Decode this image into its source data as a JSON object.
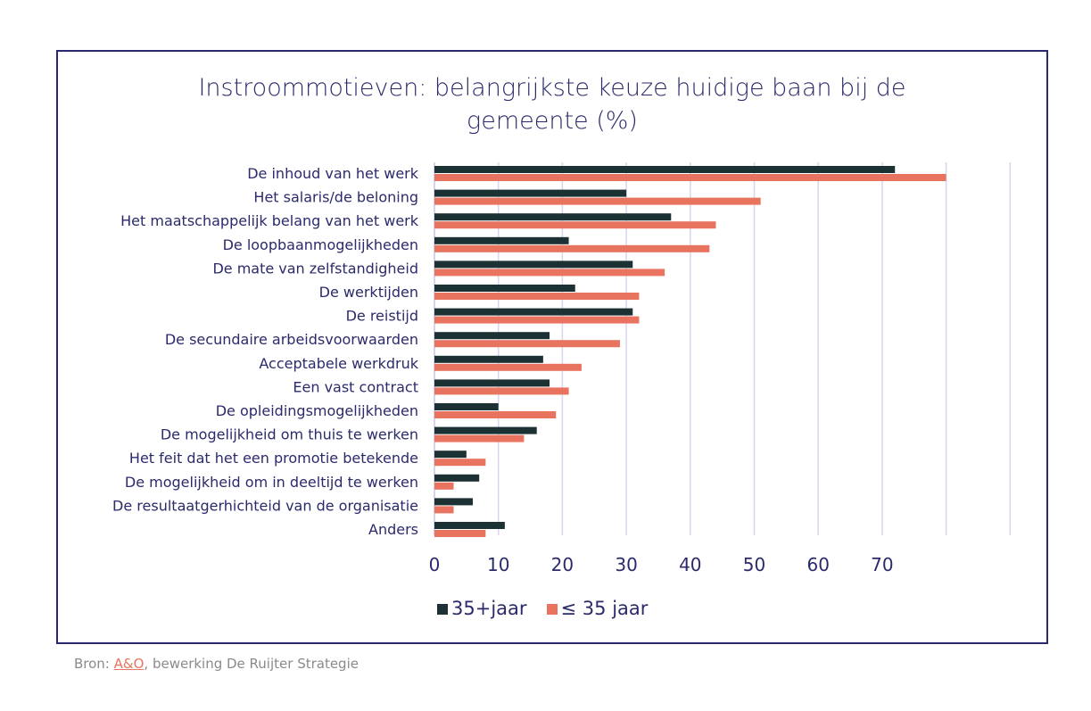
{
  "chart_data": {
    "type": "bar",
    "orientation": "horizontal",
    "title": "Instroommotieven: belangrijkste keuze huidige baan bij de gemeente (%)",
    "categories": [
      "De inhoud van het werk",
      "Het salaris/de beloning",
      "Het maatschappelijk belang van het werk",
      "De loopbaanmogelijkheden",
      "De mate van zelfstandigheid",
      "De werktijden",
      "De reistijd",
      "De secundaire arbeidsvoorwaarden",
      "Acceptabele werkdruk",
      "Een vast contract ",
      "De opleidingsmogelijkheden",
      "De mogelijkheid om thuis te werken",
      "Het feit dat het een promotie betekende",
      "De mogelijkheid om in deeltijd te werken",
      "De resultaatgerhichteid van de organisatie",
      "Anders"
    ],
    "series": [
      {
        "name": "35+jaar",
        "color": "#1c3133",
        "values": [
          72,
          30,
          37,
          21,
          31,
          22,
          31,
          18,
          17,
          18,
          10,
          16,
          5,
          7,
          6,
          11
        ]
      },
      {
        "name": "≤ 35 jaar",
        "color": "#e8735e",
        "values": [
          80,
          51,
          44,
          43,
          36,
          32,
          32,
          29,
          23,
          21,
          19,
          14,
          8,
          3,
          3,
          8
        ]
      }
    ],
    "xlim": [
      0,
      90
    ],
    "xticks": [
      "0",
      "10",
      "20",
      "30",
      "40",
      "50",
      "60",
      "70"
    ],
    "grid": true,
    "legend_position": "bottom"
  },
  "source": {
    "prefix": "Bron: ",
    "link": "A&O",
    "suffix": ", bewerking De Ruijter Strategie"
  }
}
